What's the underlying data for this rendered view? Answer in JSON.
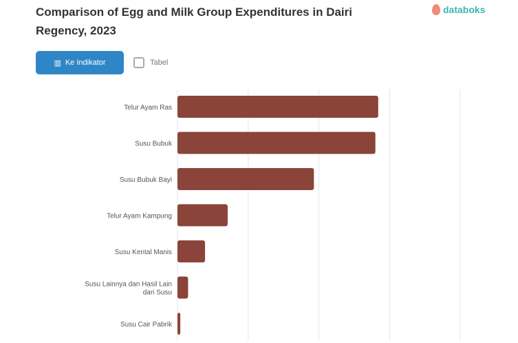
{
  "header": {
    "title": "Comparison of Egg and Milk Group Expenditures in Dairi Regency, 2023",
    "logo": "databoks",
    "button_label": "Ke Indikator",
    "button_icon": "chart-icon",
    "table_label": "Tabel",
    "table_icon": "table-icon"
  },
  "chart_data": {
    "type": "bar",
    "orientation": "horizontal",
    "categories": [
      "Telur Ayam Ras",
      "Susu Bubuk",
      "Susu Bubuk Bayi",
      "Telur Ayam Kampung",
      "Susu Kental Manis",
      "Susu Lainnya dan Hasil Lain dari Susu",
      "Susu Cair Pabrik"
    ],
    "values": [
      2.84,
      2.8,
      1.93,
      0.71,
      0.39,
      0.15,
      0.04
    ],
    "xlim": [
      0,
      4
    ],
    "grid": true,
    "bar_color": "#8a4439",
    "title": "Comparison of Egg and Milk Group Expenditures in Dairi Regency, 2023"
  }
}
